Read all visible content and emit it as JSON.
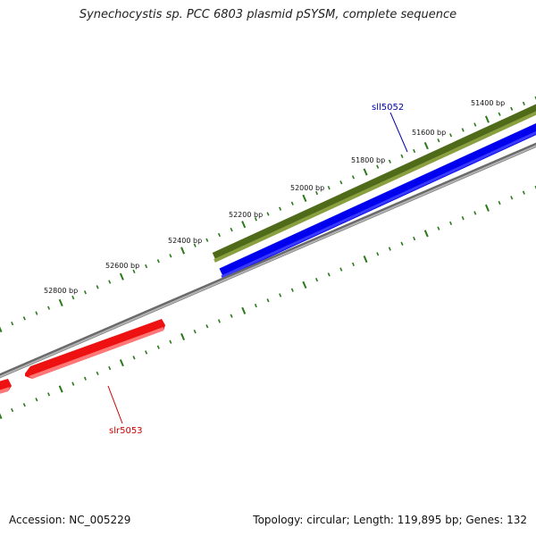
{
  "title": "Synechocystis sp. PCC 6803 plasmid pSYSM, complete sequence",
  "footer": {
    "accession": "Accession: NC_005229",
    "summary": "Topology: circular; Length: 119,895 bp; Genes: 132"
  },
  "colors": {
    "backbone": "#8a8a8a",
    "tick": "#2a7a1a",
    "olive_track": "#6b8e23",
    "blue_track": "#0000ee",
    "red_gene": "#ee1111",
    "sll_label": "#0000aa",
    "slr_label": "#cc0000"
  },
  "bp_labels": [
    "51400 bp",
    "51600 bp",
    "51800 bp",
    "52000 bp",
    "52200 bp",
    "52400 bp",
    "52600 bp",
    "52800 bp"
  ],
  "genes": [
    {
      "name": "sll5052",
      "strand": "minus"
    },
    {
      "name": "slr5053",
      "strand": "plus"
    }
  ]
}
